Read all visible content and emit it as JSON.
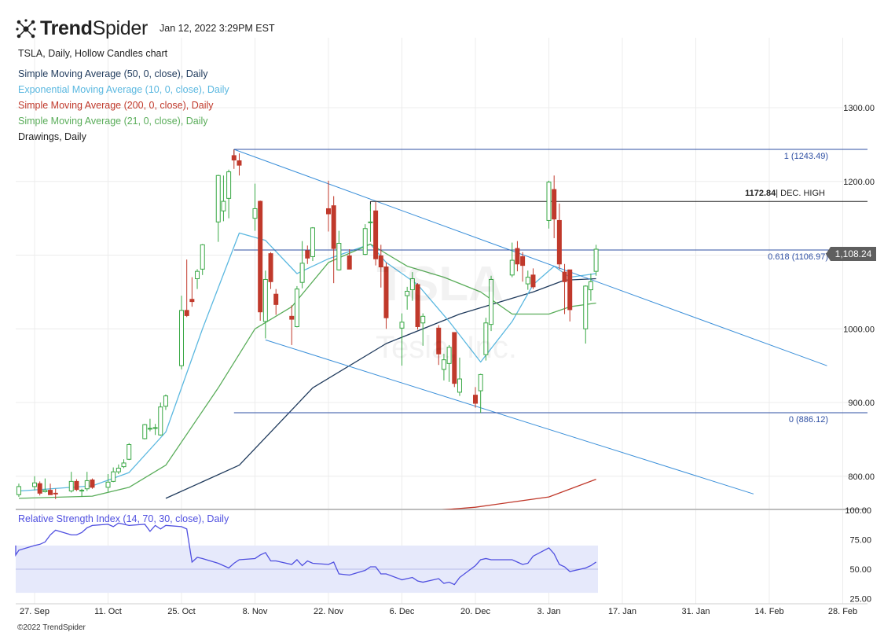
{
  "header": {
    "brand_bold": "Trend",
    "brand_light": "Spider",
    "timestamp": "Jan 12, 2022 3:29PM EST",
    "copyright": "©2022 TrendSpider"
  },
  "legend": [
    {
      "text": "TSLA, Daily, Hollow Candles chart",
      "color": "#222222"
    },
    {
      "text": "Simple Moving Average (50, 0, close), Daily",
      "color": "#1f3a5c"
    },
    {
      "text": "Exponential Moving Average (10, 0, close), Daily",
      "color": "#5bb8e0"
    },
    {
      "text": "Simple Moving Average (200, 0, close), Daily",
      "color": "#c0392b"
    },
    {
      "text": "Simple Moving Average (21, 0, close), Daily",
      "color": "#5aad5a"
    },
    {
      "text": "Drawings, Daily",
      "color": "#222222"
    }
  ],
  "watermark": {
    "ticker": "TSLA",
    "name": "Tesla, Inc."
  },
  "current_price": "1,108.24",
  "rsi_label": "Relative Strength Index (14, 70, 30, close), Daily",
  "chart_data": {
    "type": "candlestick",
    "ticker": "TSLA",
    "x_tick_labels": [
      "27. Sep",
      "11. Oct",
      "25. Oct",
      "8. Nov",
      "22. Nov",
      "6. Dec",
      "20. Dec",
      "3. Jan",
      "17. Jan",
      "31. Jan",
      "14. Feb",
      "28. Feb"
    ],
    "y_ticks": [
      800,
      900,
      1000,
      1100,
      1200,
      1300
    ],
    "y_tick_labels": [
      "800.00",
      "900.00",
      "1000.00",
      "1100.00",
      "1200.00",
      "1300.00"
    ],
    "ylim": [
      780,
      1345
    ],
    "candles": [
      {
        "date": "2021-09-24",
        "o": 775,
        "h": 790,
        "l": 772,
        "c": 786
      },
      {
        "date": "2021-09-27",
        "o": 786,
        "h": 800,
        "l": 781,
        "c": 791
      },
      {
        "date": "2021-09-28",
        "o": 790,
        "h": 793,
        "l": 774,
        "c": 777
      },
      {
        "date": "2021-09-29",
        "o": 779,
        "h": 797,
        "l": 778,
        "c": 781
      },
      {
        "date": "2021-09-30",
        "o": 781,
        "h": 790,
        "l": 776,
        "c": 775
      },
      {
        "date": "2021-10-01",
        "o": 777,
        "h": 783,
        "l": 769,
        "c": 776
      },
      {
        "date": "2021-10-04",
        "o": 780,
        "h": 806,
        "l": 778,
        "c": 793
      },
      {
        "date": "2021-10-05",
        "o": 793,
        "h": 796,
        "l": 780,
        "c": 782
      },
      {
        "date": "2021-10-06",
        "o": 780,
        "h": 783,
        "l": 772,
        "c": 781
      },
      {
        "date": "2021-10-07",
        "o": 783,
        "h": 806,
        "l": 780,
        "c": 794
      },
      {
        "date": "2021-10-08",
        "o": 795,
        "h": 797,
        "l": 783,
        "c": 785
      },
      {
        "date": "2021-10-11",
        "o": 785,
        "h": 803,
        "l": 779,
        "c": 792
      },
      {
        "date": "2021-10-12",
        "o": 793,
        "h": 812,
        "l": 792,
        "c": 806
      },
      {
        "date": "2021-10-13",
        "o": 806,
        "h": 816,
        "l": 803,
        "c": 811
      },
      {
        "date": "2021-10-14",
        "o": 813,
        "h": 823,
        "l": 811,
        "c": 818
      },
      {
        "date": "2021-10-15",
        "o": 823,
        "h": 845,
        "l": 822,
        "c": 843
      },
      {
        "date": "2021-10-18",
        "o": 851,
        "h": 871,
        "l": 850,
        "c": 870
      },
      {
        "date": "2021-10-19",
        "o": 865,
        "h": 878,
        "l": 861,
        "c": 865
      },
      {
        "date": "2021-10-20",
        "o": 865,
        "h": 871,
        "l": 856,
        "c": 866
      },
      {
        "date": "2021-10-21",
        "o": 856,
        "h": 900,
        "l": 855,
        "c": 894
      },
      {
        "date": "2021-10-22",
        "o": 895,
        "h": 911,
        "l": 890,
        "c": 909
      },
      {
        "date": "2021-10-25",
        "o": 950,
        "h": 1045,
        "l": 945,
        "c": 1025
      },
      {
        "date": "2021-10-26",
        "o": 1025,
        "h": 1094,
        "l": 1016,
        "c": 1018
      },
      {
        "date": "2021-10-27",
        "o": 1040,
        "h": 1070,
        "l": 1030,
        "c": 1037
      },
      {
        "date": "2021-10-28",
        "o": 1068,
        "h": 1081,
        "l": 1054,
        "c": 1078
      },
      {
        "date": "2021-10-29",
        "o": 1081,
        "h": 1115,
        "l": 1073,
        "c": 1114
      },
      {
        "date": "2021-11-01",
        "o": 1145,
        "h": 1209,
        "l": 1118,
        "c": 1208
      },
      {
        "date": "2021-11-02",
        "o": 1160,
        "h": 1208,
        "l": 1146,
        "c": 1173
      },
      {
        "date": "2021-11-03",
        "o": 1177,
        "h": 1216,
        "l": 1150,
        "c": 1213
      },
      {
        "date": "2021-11-04",
        "o": 1235,
        "h": 1243,
        "l": 1217,
        "c": 1229
      },
      {
        "date": "2021-11-05",
        "o": 1228,
        "h": 1238,
        "l": 1208,
        "c": 1222
      },
      {
        "date": "2021-11-08",
        "o": 1150,
        "h": 1197,
        "l": 1133,
        "c": 1163
      },
      {
        "date": "2021-11-09",
        "o": 1173,
        "h": 1174,
        "l": 1011,
        "c": 1023
      },
      {
        "date": "2021-11-10",
        "o": 1010,
        "h": 1079,
        "l": 987,
        "c": 1067
      },
      {
        "date": "2021-11-11",
        "o": 1102,
        "h": 1104,
        "l": 1054,
        "c": 1064
      },
      {
        "date": "2021-11-12",
        "o": 1047,
        "h": 1054,
        "l": 1019,
        "c": 1033
      },
      {
        "date": "2021-11-15",
        "o": 1017,
        "h": 1032,
        "l": 978,
        "c": 1013
      },
      {
        "date": "2021-11-16",
        "o": 1003,
        "h": 1058,
        "l": 1002,
        "c": 1054
      },
      {
        "date": "2021-11-17",
        "o": 1063,
        "h": 1119,
        "l": 1055,
        "c": 1089
      },
      {
        "date": "2021-11-18",
        "o": 1106,
        "h": 1113,
        "l": 1088,
        "c": 1096
      },
      {
        "date": "2021-11-19",
        "o": 1098,
        "h": 1138,
        "l": 1092,
        "c": 1137
      },
      {
        "date": "2021-11-22",
        "o": 1163,
        "h": 1201,
        "l": 1132,
        "c": 1156
      },
      {
        "date": "2021-11-23",
        "o": 1167,
        "h": 1180,
        "l": 1062,
        "c": 1109
      },
      {
        "date": "2021-11-24",
        "o": 1080,
        "h": 1133,
        "l": 1079,
        "c": 1116
      },
      {
        "date": "2021-11-26",
        "o": 1099,
        "h": 1108,
        "l": 1081,
        "c": 1081
      },
      {
        "date": "2021-11-29",
        "o": 1101,
        "h": 1142,
        "l": 1100,
        "c": 1136
      },
      {
        "date": "2021-11-30",
        "o": 1144,
        "h": 1169,
        "l": 1118,
        "c": 1145
      },
      {
        "date": "2021-12-01",
        "o": 1160,
        "h": 1172,
        "l": 1086,
        "c": 1095
      },
      {
        "date": "2021-12-02",
        "o": 1099,
        "h": 1114,
        "l": 1056,
        "c": 1084
      },
      {
        "date": "2021-12-03",
        "o": 1084,
        "h": 1090,
        "l": 1000,
        "c": 1015
      },
      {
        "date": "2021-12-06",
        "o": 1001,
        "h": 1021,
        "l": 950,
        "c": 1009
      },
      {
        "date": "2021-12-07",
        "o": 1045,
        "h": 1057,
        "l": 1026,
        "c": 1051
      },
      {
        "date": "2021-12-08",
        "o": 1053,
        "h": 1077,
        "l": 1038,
        "c": 1068
      },
      {
        "date": "2021-12-09",
        "o": 1060,
        "h": 1062,
        "l": 999,
        "c": 1003
      },
      {
        "date": "2021-12-10",
        "o": 1008,
        "h": 1021,
        "l": 977,
        "c": 1017
      },
      {
        "date": "2021-12-13",
        "o": 1001,
        "h": 1005,
        "l": 951,
        "c": 966
      },
      {
        "date": "2021-12-14",
        "o": 945,
        "h": 966,
        "l": 930,
        "c": 958
      },
      {
        "date": "2021-12-15",
        "o": 953,
        "h": 978,
        "l": 928,
        "c": 975
      },
      {
        "date": "2021-12-16",
        "o": 995,
        "h": 995,
        "l": 921,
        "c": 926
      },
      {
        "date": "2021-12-17",
        "o": 914,
        "h": 961,
        "l": 909,
        "c": 932
      },
      {
        "date": "2021-12-20",
        "o": 910,
        "h": 921,
        "l": 893,
        "c": 899
      },
      {
        "date": "2021-12-21",
        "o": 916,
        "h": 939,
        "l": 886,
        "c": 938
      },
      {
        "date": "2021-12-22",
        "o": 965,
        "h": 1015,
        "l": 957,
        "c": 1008
      },
      {
        "date": "2021-12-23",
        "o": 1006,
        "h": 1072,
        "l": 997,
        "c": 1067
      },
      {
        "date": "2021-12-27",
        "o": 1073,
        "h": 1117,
        "l": 1070,
        "c": 1093
      },
      {
        "date": "2021-12-28",
        "o": 1109,
        "h": 1119,
        "l": 1078,
        "c": 1088
      },
      {
        "date": "2021-12-29",
        "o": 1098,
        "h": 1104,
        "l": 1064,
        "c": 1086
      },
      {
        "date": "2021-12-30",
        "o": 1061,
        "h": 1079,
        "l": 1053,
        "c": 1070
      },
      {
        "date": "2021-12-31",
        "o": 1073,
        "h": 1082,
        "l": 1054,
        "c": 1057
      },
      {
        "date": "2022-01-03",
        "o": 1147,
        "h": 1201,
        "l": 1136,
        "c": 1199
      },
      {
        "date": "2022-01-04",
        "o": 1189,
        "h": 1208,
        "l": 1123,
        "c": 1149
      },
      {
        "date": "2022-01-05",
        "o": 1147,
        "h": 1170,
        "l": 1081,
        "c": 1088
      },
      {
        "date": "2022-01-06",
        "o": 1077,
        "h": 1088,
        "l": 1020,
        "c": 1064
      },
      {
        "date": "2022-01-07",
        "o": 1080,
        "h": 1080,
        "l": 1010,
        "c": 1026
      },
      {
        "date": "2022-01-10",
        "o": 1000,
        "h": 1059,
        "l": 980,
        "c": 1058
      },
      {
        "date": "2022-01-11",
        "o": 1053,
        "h": 1075,
        "l": 1038,
        "c": 1064
      },
      {
        "date": "2022-01-12",
        "o": 1078,
        "h": 1114,
        "l": 1072,
        "c": 1108
      }
    ],
    "moving_averages": [
      {
        "name": "Simple Moving Average (50, 0, close), Daily",
        "color": "#1f3a5c",
        "points": [
          [
            "2021-10-22",
            770
          ],
          [
            "2021-11-05",
            815
          ],
          [
            "2021-11-19",
            920
          ],
          [
            "2021-12-03",
            980
          ],
          [
            "2021-12-17",
            1020
          ],
          [
            "2021-12-31",
            1050
          ],
          [
            "2022-01-06",
            1066
          ],
          [
            "2022-01-12",
            1068
          ]
        ]
      },
      {
        "name": "Exponential Moving Average (10, 0, close), Daily",
        "color": "#5bb8e0",
        "points": [
          [
            "2021-09-24",
            780
          ],
          [
            "2021-10-08",
            787
          ],
          [
            "2021-10-15",
            805
          ],
          [
            "2021-10-22",
            860
          ],
          [
            "2021-10-29",
            1000
          ],
          [
            "2021-11-05",
            1130
          ],
          [
            "2021-11-10",
            1120
          ],
          [
            "2021-11-16",
            1075
          ],
          [
            "2021-11-22",
            1095
          ],
          [
            "2021-11-30",
            1115
          ],
          [
            "2021-12-03",
            1090
          ],
          [
            "2021-12-09",
            1060
          ],
          [
            "2021-12-15",
            1010
          ],
          [
            "2021-12-21",
            955
          ],
          [
            "2021-12-27",
            1010
          ],
          [
            "2021-12-31",
            1060
          ],
          [
            "2022-01-04",
            1085
          ],
          [
            "2022-01-07",
            1070
          ],
          [
            "2022-01-12",
            1075
          ]
        ]
      },
      {
        "name": "Simple Moving Average (200, 0, close), Daily",
        "color": "#c0392b",
        "points": [
          [
            "2021-12-06",
            750
          ],
          [
            "2021-12-20",
            758
          ],
          [
            "2022-01-03",
            772
          ],
          [
            "2022-01-12",
            796
          ]
        ]
      },
      {
        "name": "Simple Moving Average (21, 0, close), Daily",
        "color": "#5aad5a",
        "points": [
          [
            "2021-09-24",
            770
          ],
          [
            "2021-10-08",
            773
          ],
          [
            "2021-10-15",
            785
          ],
          [
            "2021-10-22",
            815
          ],
          [
            "2021-11-01",
            920
          ],
          [
            "2021-11-08",
            1000
          ],
          [
            "2021-11-15",
            1030
          ],
          [
            "2021-11-22",
            1090
          ],
          [
            "2021-11-30",
            1115
          ],
          [
            "2021-12-07",
            1085
          ],
          [
            "2021-12-14",
            1070
          ],
          [
            "2021-12-21",
            1050
          ],
          [
            "2021-12-27",
            1020
          ],
          [
            "2022-01-03",
            1020
          ],
          [
            "2022-01-07",
            1030
          ],
          [
            "2022-01-12",
            1035
          ]
        ]
      }
    ],
    "fibonacci": {
      "levels": [
        {
          "ratio_label": "1 (1243.49)",
          "price": 1243.49
        },
        {
          "ratio_label": "0.618 (1106.97)",
          "price": 1106.97
        },
        {
          "ratio_label": "0 (886.12)",
          "price": 886.12
        }
      ],
      "color": "#2e4fa3",
      "start": "2021-11-04"
    },
    "dec_high": {
      "price": 1172.84,
      "price_label": "1172.84",
      "label": "| DEC. HIGH",
      "start": "2021-11-30"
    },
    "channel_lines": [
      {
        "from": [
          "2021-11-04",
          1243.49
        ],
        "to": [
          "2022-02-25",
          950
        ]
      },
      {
        "from": [
          "2021-11-10",
          985
        ],
        "to": [
          "2022-02-11",
          776
        ]
      }
    ],
    "rsi": {
      "y_ticks": [
        25,
        50,
        75,
        100
      ],
      "y_tick_labels": [
        "25.00",
        "50.00",
        "75.00",
        "100.00"
      ],
      "ylim": [
        23,
        102
      ],
      "band": [
        30,
        70
      ],
      "midline": 50,
      "color": "#4f4fe0",
      "values": [
        62,
        67,
        70,
        64,
        65,
        62,
        63,
        62,
        63,
        63,
        63,
        65,
        66,
        63,
        62,
        66,
        70,
        71,
        73,
        79,
        83,
        79,
        79,
        81,
        85,
        87,
        88,
        86,
        89,
        88,
        87,
        88,
        82,
        87,
        84,
        87,
        86,
        84,
        56,
        60,
        59,
        55,
        53,
        51,
        55,
        58,
        59,
        62,
        64,
        57,
        57,
        54,
        58,
        53,
        57,
        55,
        54,
        56,
        46,
        45,
        49,
        52,
        52,
        46,
        46,
        41,
        42,
        43,
        40,
        39,
        42,
        38,
        39,
        37,
        43,
        53,
        58,
        59,
        58,
        58,
        56,
        54,
        55,
        61,
        68,
        63,
        54,
        52,
        48,
        51,
        53,
        56
      ]
    }
  }
}
